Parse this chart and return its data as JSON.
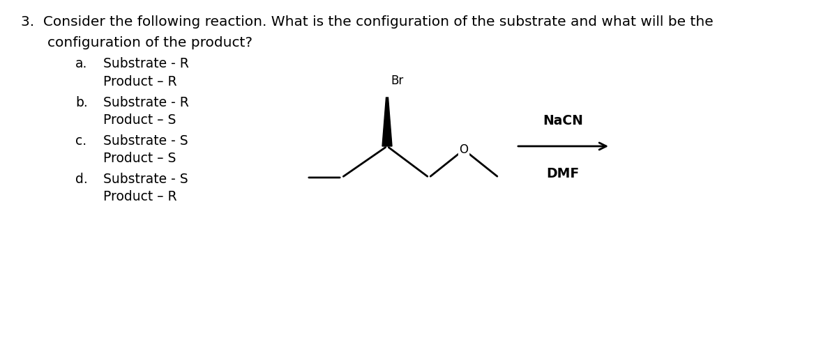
{
  "bg_color": "#ffffff",
  "question_number": "3.",
  "question_text": "Consider the following reaction. What is the configuration of the substrate and what will be the",
  "question_text2": "configuration of the product?",
  "options": [
    {
      "letter": "a.",
      "line1": "Substrate - R",
      "line2": "Product – R"
    },
    {
      "letter": "b.",
      "line1": "Substrate - R",
      "line2": "Product – S"
    },
    {
      "letter": "c.",
      "line1": "Substrate - S",
      "line2": "Product – S"
    },
    {
      "letter": "d.",
      "line1": "Substrate - S",
      "line2": "Product – R"
    }
  ],
  "reagent_top": "NaCN",
  "reagent_bottom": "DMF",
  "Br_label": "Br",
  "O_label": "O",
  "font_size_question": 14.5,
  "font_size_options": 13.5,
  "font_size_reagent": 13.5
}
